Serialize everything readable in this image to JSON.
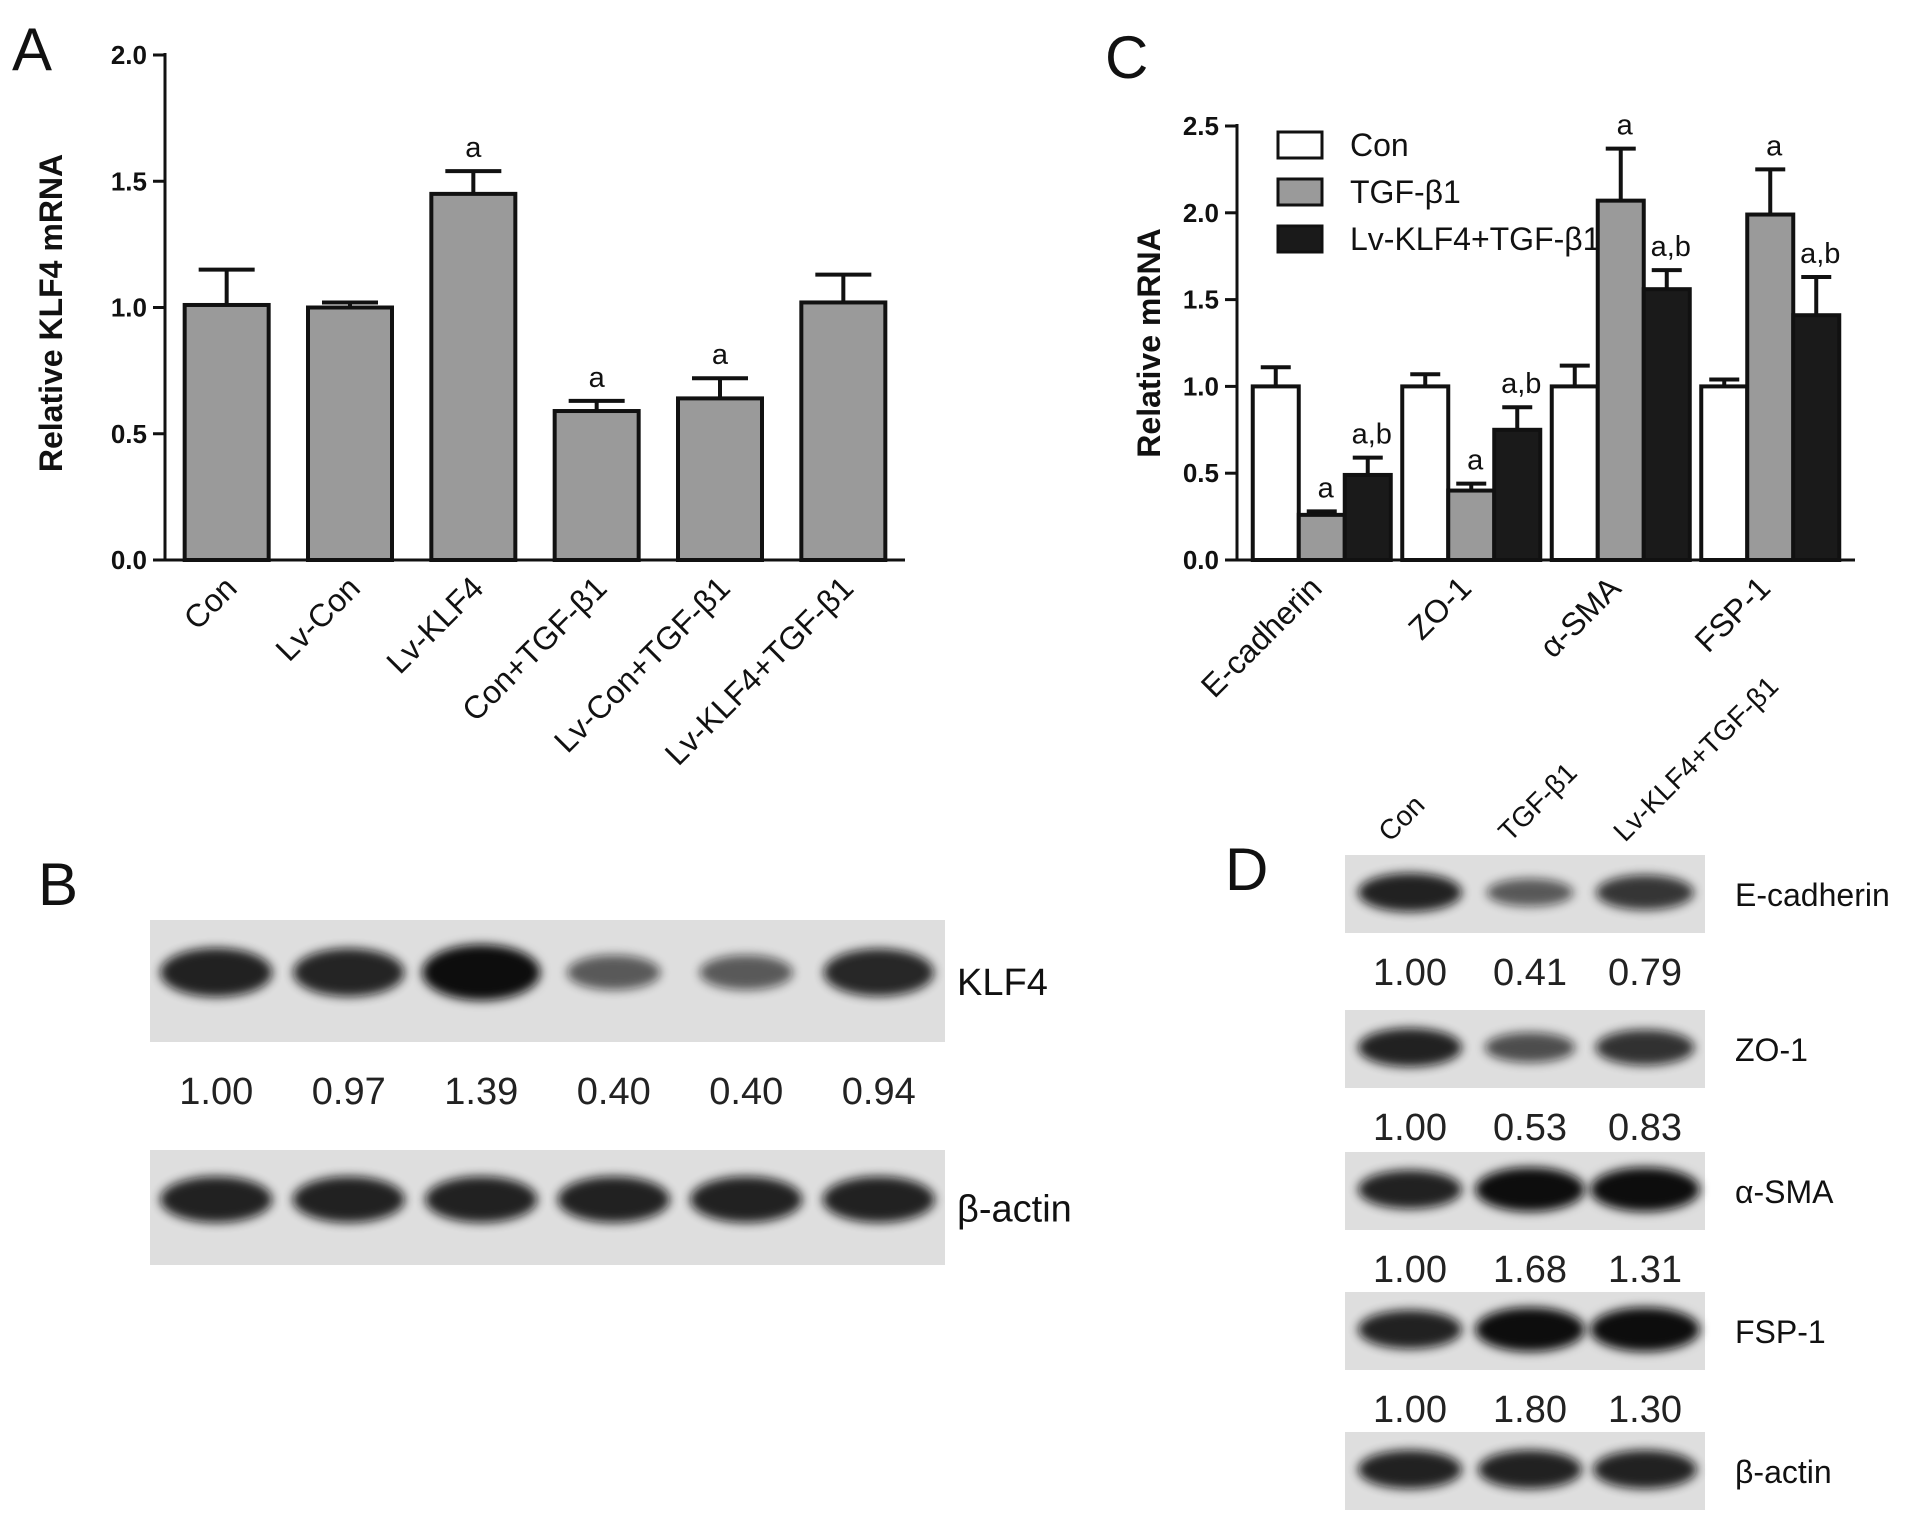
{
  "panel_labels": {
    "A": "A",
    "B": "B",
    "C": "C",
    "D": "D"
  },
  "chart_data": [
    {
      "panel": "A",
      "type": "bar",
      "ylabel": "Relative KLF4 mRNA",
      "ylim": [
        0,
        2.0
      ],
      "yticks": [
        0.0,
        0.5,
        1.0,
        1.5,
        2.0
      ],
      "ytick_labels": [
        "0.0",
        "0.5",
        "1.0",
        "1.5",
        "2.0"
      ],
      "categories": [
        "Con",
        "Lv-Con",
        "Lv-KLF4",
        "Con+TGF-β1",
        "Lv-Con+TGF-β1",
        "Lv-KLF4+TGF-β1"
      ],
      "values": [
        1.01,
        1.0,
        1.45,
        0.59,
        0.64,
        1.02
      ],
      "errors": [
        0.14,
        0.02,
        0.09,
        0.04,
        0.08,
        0.11
      ],
      "annotations": [
        "",
        "",
        "a",
        "a",
        "a",
        ""
      ],
      "bar_color": "#9a9a9a"
    },
    {
      "panel": "C",
      "type": "bar",
      "ylabel": "Relative mRNA",
      "ylim": [
        0,
        2.5
      ],
      "yticks": [
        0.0,
        0.5,
        1.0,
        1.5,
        2.0,
        2.5
      ],
      "ytick_labels": [
        "0.0",
        "0.5",
        "1.0",
        "1.5",
        "2.0",
        "2.5"
      ],
      "categories": [
        "E-cadherin",
        "ZO-1",
        "α-SMA",
        "FSP-1"
      ],
      "legend_position": "top-left",
      "series": [
        {
          "name": "Con",
          "color": "#ffffff",
          "values": [
            1.0,
            1.0,
            1.0,
            1.0
          ],
          "errors": [
            0.11,
            0.07,
            0.12,
            0.04
          ],
          "annotations": [
            "",
            "",
            "",
            ""
          ]
        },
        {
          "name": "TGF-β1",
          "color": "#9a9a9a",
          "values": [
            0.26,
            0.4,
            2.07,
            1.99
          ],
          "errors": [
            0.02,
            0.04,
            0.3,
            0.26
          ],
          "annotations": [
            "a",
            "a",
            "a",
            "a"
          ]
        },
        {
          "name": "Lv-KLF4+TGF-β1",
          "color": "#1a1a1a",
          "values": [
            0.49,
            0.75,
            1.56,
            1.41
          ],
          "errors": [
            0.1,
            0.13,
            0.11,
            0.22
          ],
          "annotations": [
            "a,b",
            "a,b",
            "a,b",
            "a,b"
          ]
        }
      ]
    }
  ],
  "blot_B": {
    "lanes": 6,
    "rows": [
      {
        "label": "KLF4",
        "intensities": [
          1.0,
          0.97,
          1.39,
          0.4,
          0.4,
          0.94
        ],
        "quant": [
          "1.00",
          "0.97",
          "1.39",
          "0.40",
          "0.40",
          "0.94"
        ]
      },
      {
        "label": "β-actin",
        "intensities": [
          1,
          1,
          1,
          1,
          1,
          1
        ],
        "quant": []
      }
    ]
  },
  "blot_D": {
    "lane_headers": [
      "Con",
      "TGF-β1",
      "Lv-KLF4+TGF-β1"
    ],
    "rows": [
      {
        "label": "E-cadherin",
        "intensities": [
          1.0,
          0.41,
          0.79
        ],
        "quant": [
          "1.00",
          "0.41",
          "0.79"
        ]
      },
      {
        "label": "ZO-1",
        "intensities": [
          1.0,
          0.53,
          0.83
        ],
        "quant": [
          "1.00",
          "0.53",
          "0.83"
        ]
      },
      {
        "label": "α-SMA",
        "intensities": [
          1.0,
          1.68,
          1.31
        ],
        "quant": [
          "1.00",
          "1.68",
          "1.31"
        ]
      },
      {
        "label": "FSP-1",
        "intensities": [
          1.0,
          1.8,
          1.3
        ],
        "quant": [
          "1.00",
          "1.80",
          "1.30"
        ]
      },
      {
        "label": "β-actin",
        "intensities": [
          1,
          1,
          1
        ],
        "quant": []
      }
    ]
  }
}
